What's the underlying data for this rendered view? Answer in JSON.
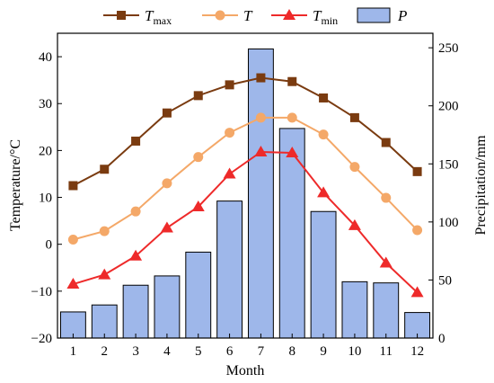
{
  "chart_data": {
    "type": "bar+line",
    "categories": [
      "1",
      "2",
      "3",
      "4",
      "5",
      "6",
      "7",
      "8",
      "9",
      "10",
      "11",
      "12"
    ],
    "xlabel": "Month",
    "ylabel_left": "Temperature/°C",
    "ylabel_right": "Precipitation/mm",
    "ylim_left": [
      -20,
      45
    ],
    "yticks_left": [
      -20,
      -10,
      0,
      10,
      20,
      30,
      40
    ],
    "ylim_right": [
      0,
      262.5
    ],
    "yticks_right": [
      0,
      50,
      100,
      150,
      200,
      250
    ],
    "legend_position": "top",
    "grid": false,
    "line_series": [
      {
        "key": "tmax",
        "name": "T",
        "subscript": "max",
        "marker": "square",
        "color": "#7a3b10",
        "values": [
          12.5,
          16,
          22,
          28,
          31.7,
          34,
          35.5,
          34.7,
          31.2,
          27,
          21.7,
          15.5
        ]
      },
      {
        "key": "t",
        "name": "T",
        "subscript": "",
        "marker": "circle",
        "color": "#f4a868",
        "values": [
          1,
          2.8,
          7,
          13,
          18.6,
          23.8,
          27,
          27,
          23.4,
          16.5,
          9.9,
          3
        ]
      },
      {
        "key": "tmin",
        "name": "T",
        "subscript": "min",
        "marker": "triangle",
        "color": "#ee2a2a",
        "values": [
          -8.5,
          -6.5,
          -2.5,
          3.5,
          8,
          15,
          19.7,
          19.5,
          11,
          4,
          -4,
          -10.3
        ]
      }
    ],
    "bar_series": {
      "key": "p",
      "name": "P",
      "color": "#9eb7ea",
      "stroke": "#000000",
      "values": [
        22.5,
        28.5,
        45.5,
        53.5,
        74,
        118,
        249,
        180.5,
        109,
        48.5,
        47.5,
        22
      ]
    }
  }
}
